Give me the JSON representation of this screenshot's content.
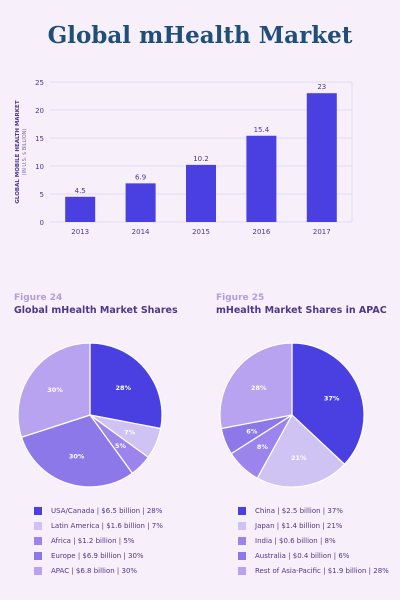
{
  "title": "Global mHealth Market",
  "chart_data": [
    {
      "type": "bar",
      "categories": [
        "2013",
        "2014",
        "2015",
        "2016",
        "2017"
      ],
      "values": [
        4.5,
        6.9,
        10.2,
        15.4,
        23
      ],
      "data_labels": [
        "4.5",
        "6.9",
        "10.2",
        "15.4",
        "23"
      ],
      "ylabel": "GLOBAL MOBILE HEALTH MARKET",
      "ylabel_sub": "(IN U.S. $ BILLION)",
      "ylim": [
        0,
        25
      ],
      "yticks": [
        "0",
        "5",
        "10",
        "15",
        "20",
        "25"
      ],
      "grid": true,
      "color": "#4a3fe0"
    },
    {
      "type": "pie",
      "figure": "Figure 24",
      "title": "Global mHealth Market Shares",
      "slices": [
        {
          "label": "USA/Canada",
          "value": 28,
          "pct_label": "28%",
          "color": "#4a3fe0",
          "legend": "USA/Canada  |  $6.5 billion  |  28%"
        },
        {
          "label": "Latin America",
          "value": 7,
          "pct_label": "7%",
          "color": "#cec3f3",
          "legend": "Latin America  |  $1.6 billion  |  7%"
        },
        {
          "label": "Africa",
          "value": 5,
          "pct_label": "5%",
          "color": "#9b85ec",
          "legend": "Africa  |  $1.2 billion  |  5%"
        },
        {
          "label": "Europe",
          "value": 30,
          "pct_label": "30%",
          "color": "#8c78e8",
          "legend": "Europe  |  $6.9 billion  |  30%"
        },
        {
          "label": "APAC",
          "value": 30,
          "pct_label": "30%",
          "color": "#b7a3ef",
          "legend": "APAC  |  $6.8 billion  |  30%"
        }
      ]
    },
    {
      "type": "pie",
      "figure": "Figure 25",
      "title": "mHealth Market Shares in APAC",
      "slices": [
        {
          "label": "China",
          "value": 37,
          "pct_label": "37%",
          "color": "#4a3fe0",
          "legend": "China  |  $2.5 billion  |  37%"
        },
        {
          "label": "Japan",
          "value": 21,
          "pct_label": "21%",
          "color": "#cec3f3",
          "legend": "Japan  |  $1.4 billion  |  21%"
        },
        {
          "label": "India",
          "value": 8,
          "pct_label": "8%",
          "color": "#9b85ec",
          "legend": "India  |  $0.6 billion  |  8%"
        },
        {
          "label": "Australia",
          "value": 6,
          "pct_label": "6%",
          "color": "#8c78e8",
          "legend": "Australia  |  $0.4 billion  |  6%"
        },
        {
          "label": "Rest of Asia-Pacific",
          "value": 28,
          "pct_label": "28%",
          "color": "#b7a3ef",
          "legend": "Rest of Asia-Pacific  |  $1.9 billion  |  28%"
        }
      ]
    }
  ]
}
